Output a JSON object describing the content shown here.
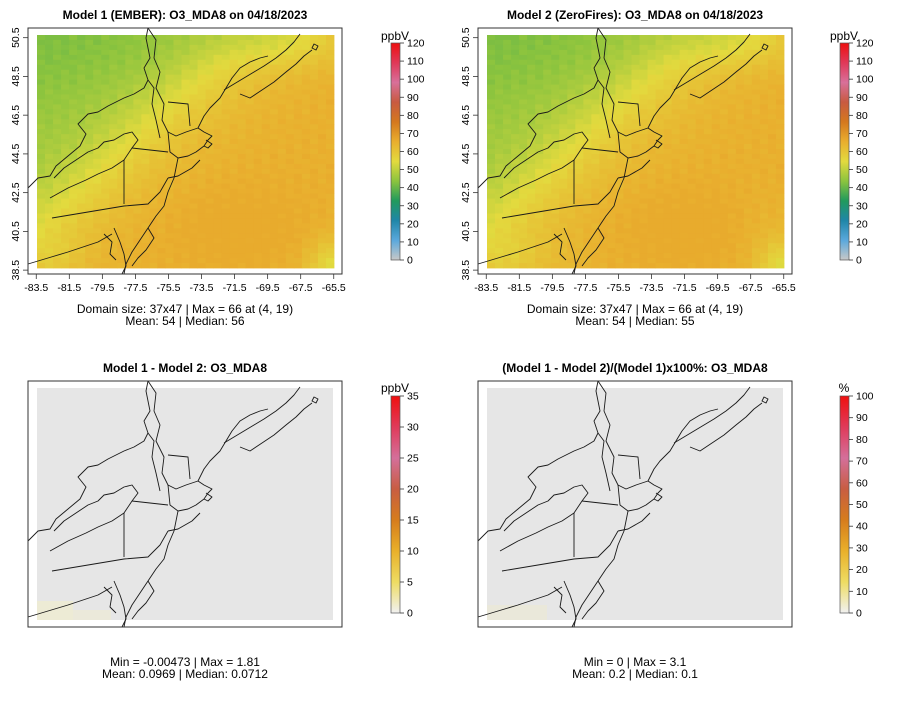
{
  "figure": {
    "colors": {
      "panel_border": "#333333",
      "coast": "#1a1a1a",
      "flat_fill": "#e6e6e6",
      "diff_hint": "#efeccd"
    }
  },
  "chart_data": [
    {
      "type": "heatmap",
      "panel": "top-left",
      "title": "Model 1 (EMBER): O3_MDA8 on 04/18/2023",
      "x_ticks": [
        "-83.5",
        "-81.5",
        "-79.5",
        "-77.5",
        "-75.5",
        "-73.5",
        "-71.5",
        "-69.5",
        "-67.5",
        "-65.5"
      ],
      "y_ticks": [
        "38.5",
        "40.5",
        "42.5",
        "44.5",
        "46.5",
        "48.5",
        "50.5"
      ],
      "xlim": [
        -84.0,
        -65.0
      ],
      "ylim": [
        38.3,
        51.0
      ],
      "grid": [
        37,
        47
      ],
      "colorbar": {
        "unit": "ppbV",
        "range": [
          0,
          120
        ],
        "ticks": [
          "0",
          "10",
          "20",
          "30",
          "40",
          "50",
          "60",
          "70",
          "80",
          "90",
          "100",
          "110",
          "120"
        ],
        "stops": [
          "#c8c8c8",
          "#5aa8dc",
          "#1f86a8",
          "#219a5c",
          "#8cc43e",
          "#e3da3e",
          "#e9ae2e",
          "#d4781e",
          "#c85a40",
          "#d8709a",
          "#e03858",
          "#ee1010"
        ]
      },
      "stats": [
        "Domain size: 37x47 | Max = 66 at (4, 19)",
        "Mean: 54 |  Median: 56"
      ],
      "range": [
        45,
        66
      ]
    },
    {
      "type": "heatmap",
      "panel": "top-right",
      "title": "Model 2 (ZeroFires): O3_MDA8 on 04/18/2023",
      "x_ticks": [
        "-83.5",
        "-81.5",
        "-79.5",
        "-77.5",
        "-75.5",
        "-73.5",
        "-71.5",
        "-69.5",
        "-67.5",
        "-65.5"
      ],
      "y_ticks": [
        "38.5",
        "40.5",
        "42.5",
        "44.5",
        "46.5",
        "48.5",
        "50.5"
      ],
      "xlim": [
        -84.0,
        -65.0
      ],
      "ylim": [
        38.3,
        51.0
      ],
      "grid": [
        37,
        47
      ],
      "colorbar": {
        "unit": "ppbV",
        "range": [
          0,
          120
        ],
        "ticks": [
          "0",
          "10",
          "20",
          "30",
          "40",
          "50",
          "60",
          "70",
          "80",
          "90",
          "100",
          "110",
          "120"
        ],
        "stops": [
          "#c8c8c8",
          "#5aa8dc",
          "#1f86a8",
          "#219a5c",
          "#8cc43e",
          "#e3da3e",
          "#e9ae2e",
          "#d4781e",
          "#c85a40",
          "#d8709a",
          "#e03858",
          "#ee1010"
        ]
      },
      "stats": [
        "Domain size: 37x47 | Max = 66 at (4, 19)",
        "Mean: 54 |  Median: 55"
      ],
      "range": [
        45,
        66
      ]
    },
    {
      "type": "heatmap",
      "panel": "bottom-left",
      "title": "Model 1 - Model 2: O3_MDA8",
      "x_ticks": [],
      "y_ticks": [],
      "colorbar": {
        "unit": "ppbV",
        "range": [
          0,
          35
        ],
        "ticks": [
          "0",
          "5",
          "10",
          "15",
          "20",
          "25",
          "30",
          "35"
        ],
        "stops": [
          "#f1f1f1",
          "#eedc62",
          "#e9b02a",
          "#d67c1c",
          "#c85d42",
          "#d46f9a",
          "#e03a5a",
          "#f01010"
        ]
      },
      "stats": [
        "Min = -0.00473 | Max = 1.81",
        "Mean: 0.0969 |  Median: 0.0712"
      ]
    },
    {
      "type": "heatmap",
      "panel": "bottom-right",
      "title": "(Model 1 - Model 2)/(Model 1)x100%: O3_MDA8",
      "x_ticks": [],
      "y_ticks": [],
      "colorbar": {
        "unit": "%",
        "range": [
          0,
          100
        ],
        "ticks": [
          "0",
          "10",
          "20",
          "30",
          "40",
          "50",
          "60",
          "70",
          "80",
          "90",
          "100"
        ],
        "stops": [
          "#f1f1f1",
          "#eedc62",
          "#e9b02a",
          "#d67c1c",
          "#c85d42",
          "#d46f9a",
          "#e03a5a",
          "#f01010"
        ]
      },
      "stats": [
        "Min = 0 | Max = 3.1",
        "Mean: 0.2 |  Median: 0.1"
      ]
    }
  ]
}
